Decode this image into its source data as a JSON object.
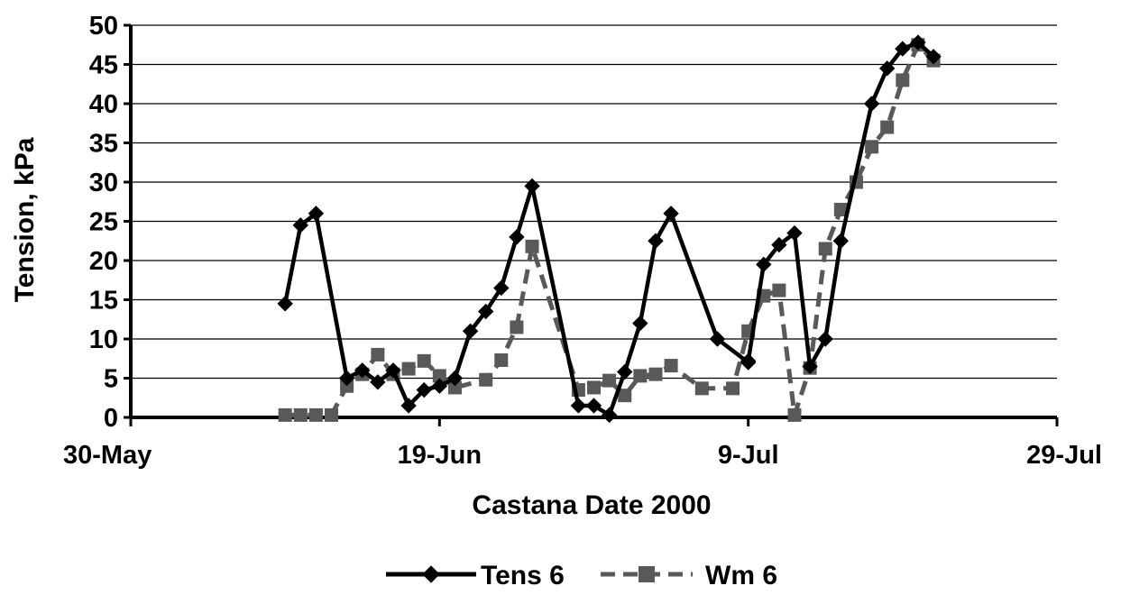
{
  "chart_data": {
    "type": "line",
    "xlabel": "Castana  Date  2000",
    "ylabel": "Tension, kPa",
    "x_ticks": [
      "30-May",
      "19-Jun",
      "9-Jul",
      "29-Jul"
    ],
    "xlim": [
      "2000-05-30",
      "2000-07-29"
    ],
    "y_ticks": [
      "0",
      "5",
      "10",
      "15",
      "20",
      "25",
      "30",
      "35",
      "40",
      "45",
      "50"
    ],
    "ylim": [
      0,
      50
    ],
    "grid": "horizontal",
    "legend_position": "bottom",
    "series": [
      {
        "name": "Tens 6",
        "color": "#000000",
        "style": "solid",
        "marker": "diamond",
        "points": [
          [
            "2000-06-09",
            14.5
          ],
          [
            "2000-06-10",
            24.5
          ],
          [
            "2000-06-11",
            26.0
          ],
          [
            "2000-06-13",
            5.0
          ],
          [
            "2000-06-14",
            6.0
          ],
          [
            "2000-06-15",
            4.5
          ],
          [
            "2000-06-16",
            6.0
          ],
          [
            "2000-06-17",
            1.5
          ],
          [
            "2000-06-18",
            3.5
          ],
          [
            "2000-06-19",
            4.0
          ],
          [
            "2000-06-20",
            5.0
          ],
          [
            "2000-06-21",
            11.0
          ],
          [
            "2000-06-22",
            13.5
          ],
          [
            "2000-06-23",
            16.5
          ],
          [
            "2000-06-24",
            23.0
          ],
          [
            "2000-06-25",
            29.5
          ],
          [
            "2000-06-28",
            1.5
          ],
          [
            "2000-06-29",
            1.5
          ],
          [
            "2000-06-30",
            0.3
          ],
          [
            "2000-07-01",
            5.8
          ],
          [
            "2000-07-02",
            12.0
          ],
          [
            "2000-07-03",
            22.5
          ],
          [
            "2000-07-04",
            26.0
          ],
          [
            "2000-07-07",
            10.0
          ],
          [
            "2000-07-09",
            7.0
          ],
          [
            "2000-07-09",
            7.2
          ],
          [
            "2000-07-10",
            19.5
          ],
          [
            "2000-07-11",
            22.0
          ],
          [
            "2000-07-12",
            23.5
          ],
          [
            "2000-07-13",
            6.5
          ],
          [
            "2000-07-14",
            10.0
          ],
          [
            "2000-07-15",
            22.5
          ],
          [
            "2000-07-17",
            40.0
          ],
          [
            "2000-07-18",
            44.5
          ],
          [
            "2000-07-19",
            47.0
          ],
          [
            "2000-07-20",
            47.8
          ],
          [
            "2000-07-21",
            46.0
          ]
        ]
      },
      {
        "name": "Wm 6",
        "color": "#595959",
        "style": "dashed",
        "marker": "square",
        "points": [
          [
            "2000-06-09",
            0.3
          ],
          [
            "2000-06-10",
            0.3
          ],
          [
            "2000-06-11",
            0.3
          ],
          [
            "2000-06-12",
            0.3
          ],
          [
            "2000-06-13",
            4.0
          ],
          [
            "2000-06-14",
            5.5
          ],
          [
            "2000-06-15",
            8.0
          ],
          [
            "2000-06-16",
            5.5
          ],
          [
            "2000-06-17",
            6.2
          ],
          [
            "2000-06-18",
            7.2
          ],
          [
            "2000-06-19",
            5.3
          ],
          [
            "2000-06-20",
            3.8
          ],
          [
            "2000-06-22",
            4.8
          ],
          [
            "2000-06-23",
            7.3
          ],
          [
            "2000-06-24",
            11.5
          ],
          [
            "2000-06-25",
            21.8
          ],
          [
            "2000-06-28",
            3.5
          ],
          [
            "2000-06-29",
            3.8
          ],
          [
            "2000-06-30",
            4.7
          ],
          [
            "2000-07-01",
            2.8
          ],
          [
            "2000-07-02",
            5.3
          ],
          [
            "2000-07-03",
            5.5
          ],
          [
            "2000-07-04",
            6.6
          ],
          [
            "2000-07-06",
            3.7
          ],
          [
            "2000-07-08",
            3.7
          ],
          [
            "2000-07-09",
            11.0
          ],
          [
            "2000-07-10",
            15.5
          ],
          [
            "2000-07-11",
            16.2
          ],
          [
            "2000-07-12",
            0.3
          ],
          [
            "2000-07-13",
            6.3
          ],
          [
            "2000-07-14",
            21.5
          ],
          [
            "2000-07-15",
            26.5
          ],
          [
            "2000-07-16",
            30.0
          ],
          [
            "2000-07-17",
            34.5
          ],
          [
            "2000-07-18",
            37.0
          ],
          [
            "2000-07-19",
            43.0
          ],
          [
            "2000-07-20",
            47.5
          ],
          [
            "2000-07-21",
            45.5
          ]
        ]
      }
    ]
  }
}
